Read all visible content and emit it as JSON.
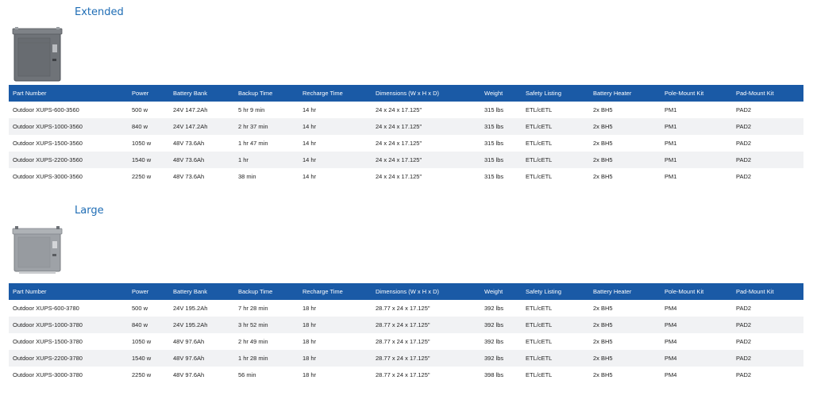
{
  "columns": [
    "Part Number",
    "Power",
    "Battery Bank",
    "Backup Time",
    "Recharge Time",
    "Dimensions (W x H x D)",
    "Weight",
    "Safety Listing",
    "Battery Heater",
    "Pole-Mount Kit",
    "Pad-Mount Kit"
  ],
  "sections": [
    {
      "title": "Extended",
      "rows": [
        [
          "Outdoor XUPS-600-3560",
          "500 w",
          "24V 147.2Ah",
          "5 hr 9 min",
          "14 hr",
          "24 x 24 x 17.125\"",
          "315 lbs",
          "ETL/cETL",
          "2x BH5",
          "PM1",
          "PAD2"
        ],
        [
          "Outdoor XUPS-1000-3560",
          "840 w",
          "24V 147.2Ah",
          "2 hr 37 min",
          "14 hr",
          "24 x 24 x 17.125\"",
          "315 lbs",
          "ETL/cETL",
          "2x BH5",
          "PM1",
          "PAD2"
        ],
        [
          "Outdoor XUPS-1500-3560",
          "1050 w",
          "48V 73.6Ah",
          "1 hr 47 min",
          "14 hr",
          "24 x 24 x 17.125\"",
          "315 lbs",
          "ETL/cETL",
          "2x BH5",
          "PM1",
          "PAD2"
        ],
        [
          "Outdoor XUPS-2200-3560",
          "1540 w",
          "48V 73.6Ah",
          "1 hr",
          "14 hr",
          "24 x 24 x 17.125\"",
          "315 lbs",
          "ETL/cETL",
          "2x BH5",
          "PM1",
          "PAD2"
        ],
        [
          "Outdoor XUPS-3000-3560",
          "2250 w",
          "48V 73.6Ah",
          "38 min",
          "14 hr",
          "24 x 24 x 17.125\"",
          "315 lbs",
          "ETL/cETL",
          "2x BH5",
          "PM1",
          "PAD2"
        ]
      ]
    },
    {
      "title": "Large",
      "rows": [
        [
          "Outdoor XUPS-600-3780",
          "500 w",
          "24V 195.2Ah",
          "7 hr 28 min",
          "18 hr",
          "28.77 x 24 x 17.125\"",
          "392 lbs",
          "ETL/cETL",
          "2x BH5",
          "PM4",
          "PAD2"
        ],
        [
          "Outdoor XUPS-1000-3780",
          "840 w",
          "24V 195.2Ah",
          "3 hr 52 min",
          "18 hr",
          "28.77 x 24 x 17.125\"",
          "392 lbs",
          "ETL/cETL",
          "2x BH5",
          "PM4",
          "PAD2"
        ],
        [
          "Outdoor XUPS-1500-3780",
          "1050 w",
          "48V 97.6Ah",
          "2 hr 49 min",
          "18 hr",
          "28.77 x 24 x 17.125\"",
          "392 lbs",
          "ETL/cETL",
          "2x BH5",
          "PM4",
          "PAD2"
        ],
        [
          "Outdoor XUPS-2200-3780",
          "1540 w",
          "48V 97.6Ah",
          "1 hr 28 min",
          "18 hr",
          "28.77 x 24 x 17.125\"",
          "392 lbs",
          "ETL/cETL",
          "2x BH5",
          "PM4",
          "PAD2"
        ],
        [
          "Outdoor XUPS-3000-3780",
          "2250 w",
          "48V 97.6Ah",
          "56 min",
          "18 hr",
          "28.77 x 24 x 17.125\"",
          "398 lbs",
          "ETL/cETL",
          "2x BH5",
          "PM4",
          "PAD2"
        ]
      ]
    }
  ],
  "colors": {
    "header_bg": "#1a5aa6",
    "title": "#1f6db5",
    "row_alt": "#f1f2f4"
  },
  "images": [
    "gray-outdoor-ups-cabinet-image",
    "light-gray-outdoor-ups-cabinet-image"
  ]
}
